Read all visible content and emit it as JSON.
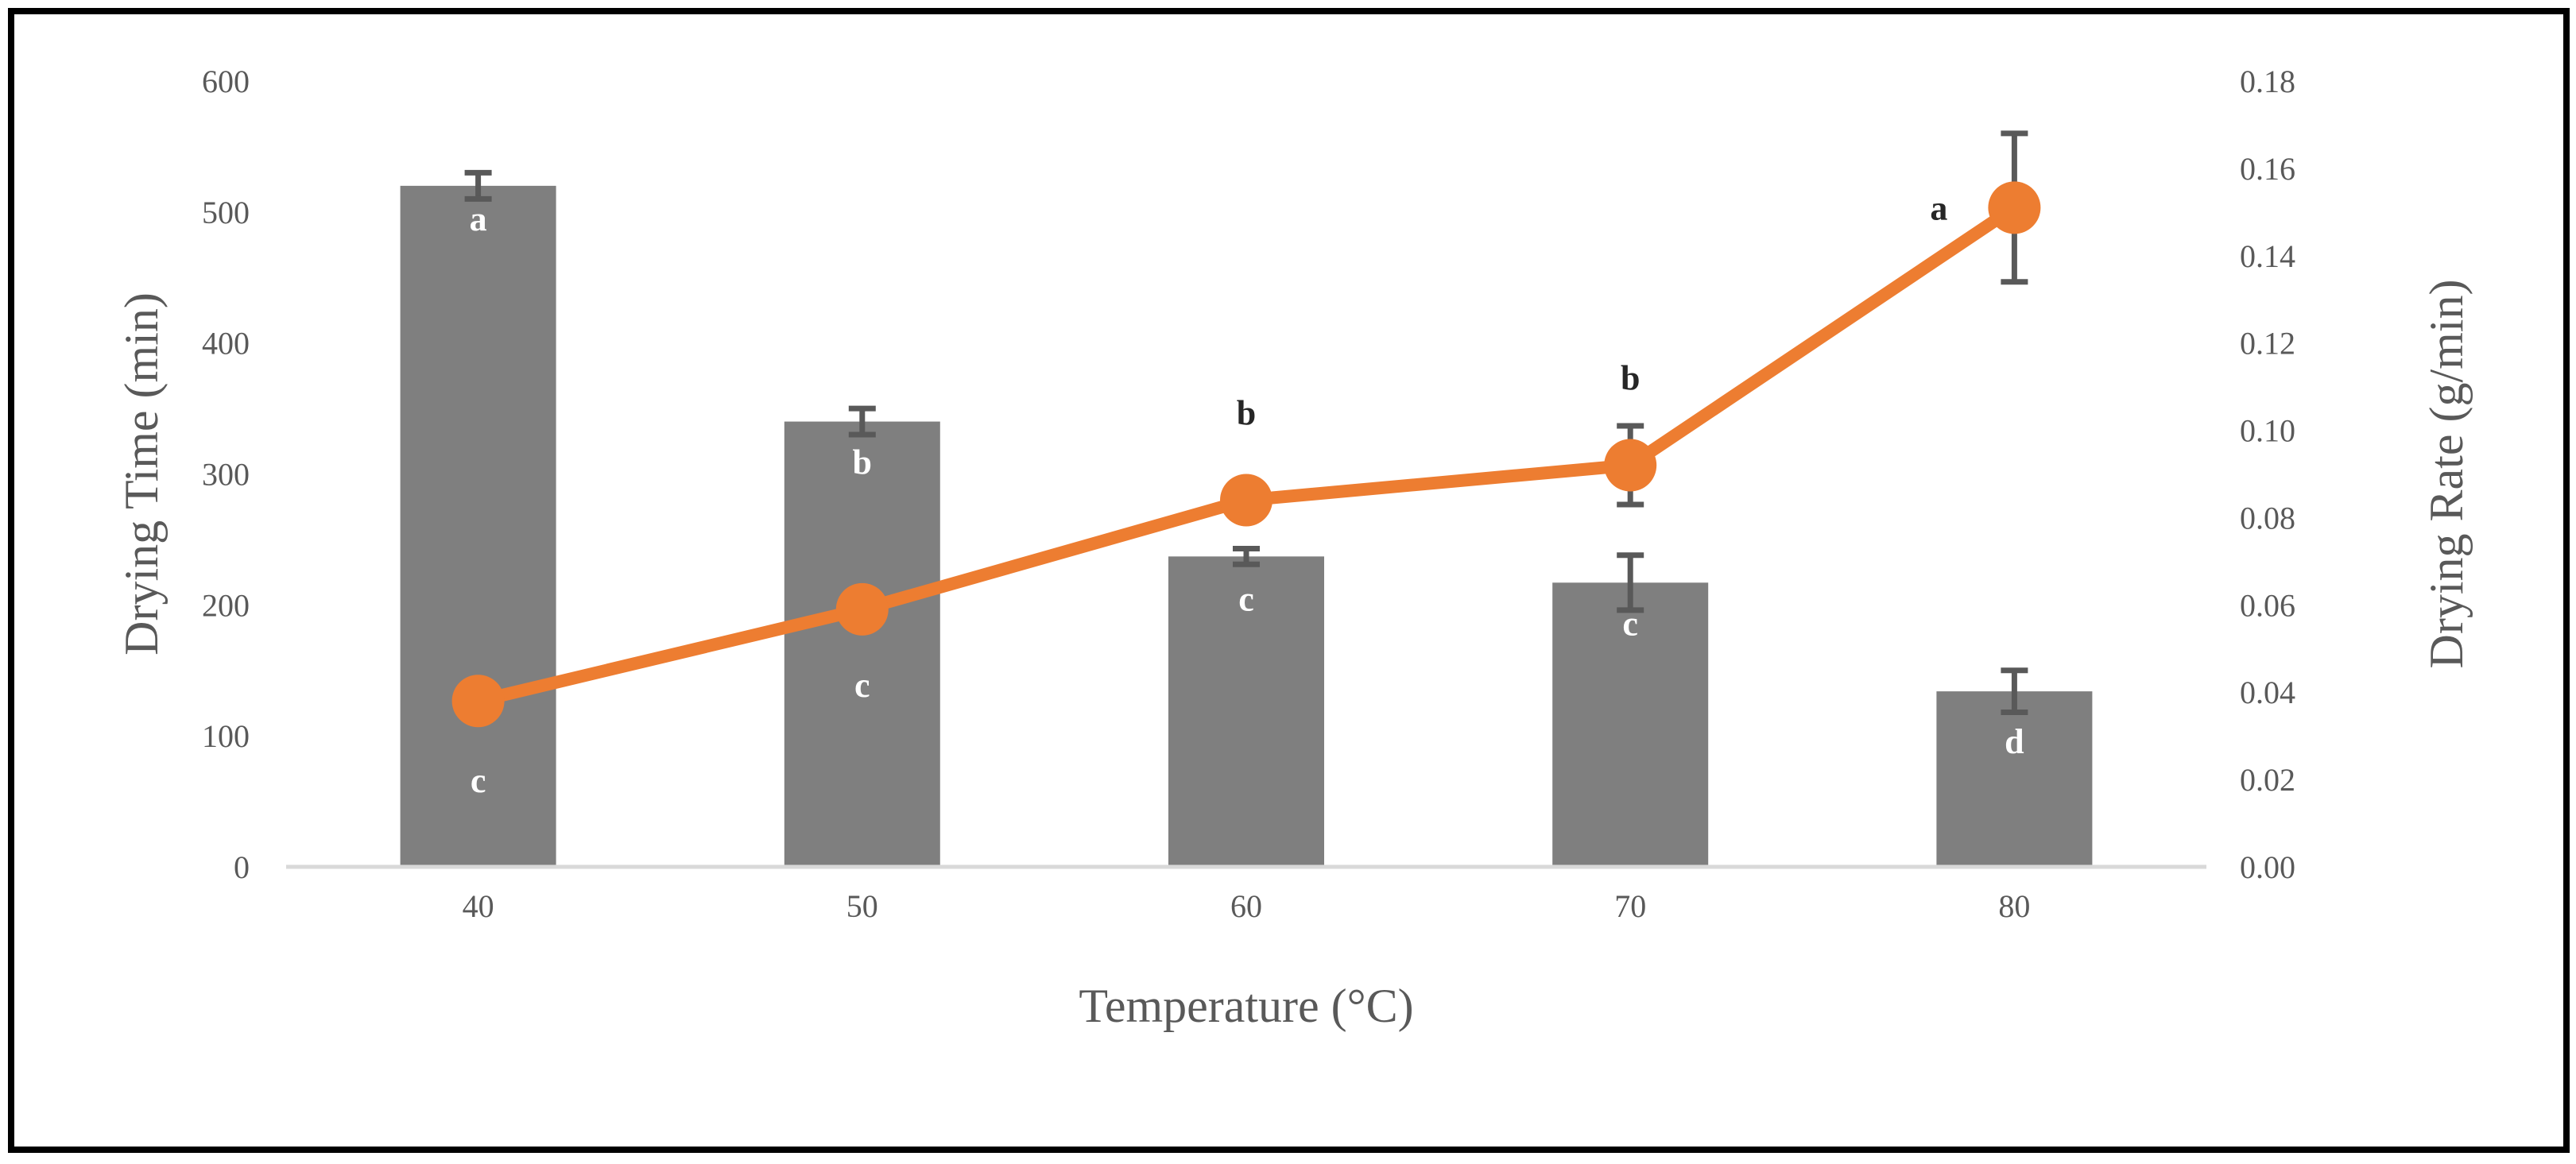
{
  "chart_data": {
    "type": "bar",
    "xlabel": "Temperature (°C)",
    "ylabel_left": "Drying Time (min)",
    "ylabel_right": "Drying Rate (g/min)",
    "categories": [
      "40",
      "50",
      "60",
      "70",
      "80"
    ],
    "ylim_left": [
      0,
      600
    ],
    "yticks_left": [
      "0",
      "100",
      "200",
      "300",
      "400",
      "500",
      "600"
    ],
    "ylim_right": [
      0,
      0.18
    ],
    "yticks_right": [
      "0.00",
      "0.02",
      "0.04",
      "0.06",
      "0.08",
      "0.10",
      "0.12",
      "0.14",
      "0.16",
      "0.18"
    ],
    "grid": false,
    "legend": "none",
    "series": [
      {
        "type": "bar",
        "axis": "left",
        "color": "#7f7f7f",
        "values": [
          520,
          340,
          237,
          217,
          134
        ],
        "error": [
          10,
          10,
          6,
          21,
          16
        ],
        "labels": [
          "a",
          "b",
          "c",
          "c",
          "d"
        ]
      },
      {
        "type": "line",
        "axis": "right",
        "color": "#ed7d31",
        "values": [
          0.038,
          0.059,
          0.084,
          0.092,
          0.151
        ],
        "error": [
          0.0,
          0.0,
          0.0,
          0.009,
          0.017
        ],
        "labels": [
          "c",
          "c",
          "b",
          "b",
          "a"
        ]
      }
    ]
  }
}
